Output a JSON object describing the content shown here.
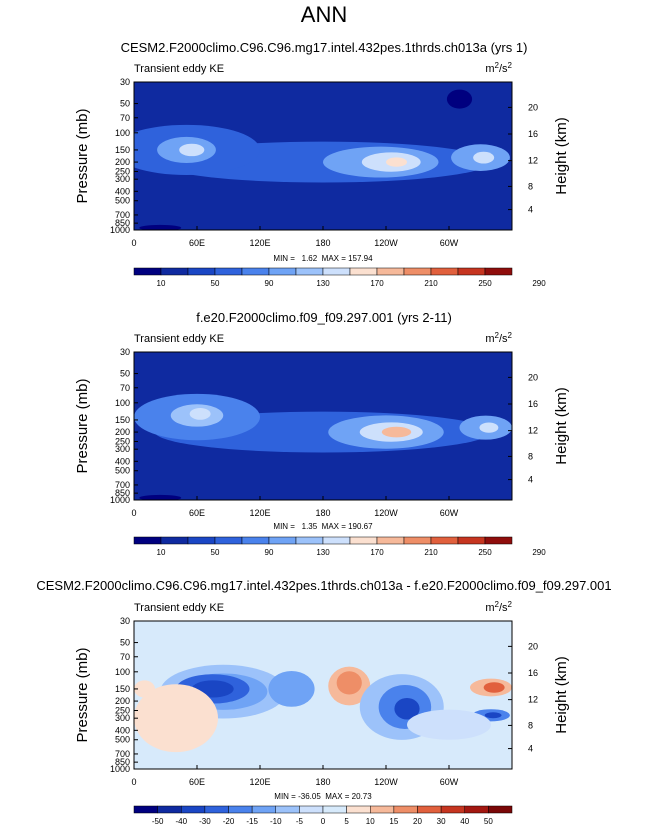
{
  "main_title": "ANN",
  "colors": {
    "panel_scale": [
      "#00007f",
      "#0f2aa0",
      "#1a46c4",
      "#2f62dc",
      "#4a82ec",
      "#6fa3f5",
      "#9cc2fa",
      "#cde0fc",
      "#fbe0d0",
      "#f6b99a",
      "#ee8e67",
      "#e1603d",
      "#c63520",
      "#8f0d0c"
    ],
    "diff_scale": [
      "#00007f",
      "#0f2aa0",
      "#1a46c4",
      "#2f62dc",
      "#4a82ec",
      "#6fa3f5",
      "#9cc2fa",
      "#cde0fc",
      "#d7eafb",
      "#fbe0d0",
      "#f6b99a",
      "#ee8e67",
      "#e1603d",
      "#c63520",
      "#a31710",
      "#7a0707"
    ]
  },
  "chart_data": [
    {
      "type": "heatmap",
      "title": "CESM2.F2000climo.C96.C96.mg17.intel.432pes.1thrds.ch013a (yrs 1)",
      "left_label": "Transient eddy KE",
      "units_base": "m",
      "units_exp1": "2",
      "units_mid": "/s",
      "units_exp2": "2",
      "ylabel": "Pressure (mb)",
      "ylabel_right": "Height (km)",
      "y_ticks": [
        "30",
        "50",
        "70",
        "100",
        "150",
        "200",
        "250",
        "300",
        "400",
        "500",
        "700",
        "850",
        "1000"
      ],
      "y_tick_values": [
        30,
        50,
        70,
        100,
        150,
        200,
        250,
        300,
        400,
        500,
        700,
        850,
        1000
      ],
      "height_ticks": [
        "20",
        "16",
        "12",
        "8",
        "4"
      ],
      "height_tick_values": [
        20,
        16,
        12,
        8,
        4
      ],
      "x_ticks": [
        "0",
        "60E",
        "120E",
        "180",
        "120W",
        "60W"
      ],
      "x_tick_values": [
        0,
        60,
        120,
        180,
        240,
        300
      ],
      "xlim": [
        0,
        360
      ],
      "ylim": [
        1000,
        30
      ],
      "stats": "MIN =   1.62  MAX = 157.94",
      "min": 1.62,
      "max": 157.94,
      "levels": [
        "10",
        "50",
        "90",
        "130",
        "170",
        "210",
        "250",
        "290"
      ],
      "level_values": [
        10,
        30,
        50,
        70,
        90,
        110,
        130,
        150,
        170,
        190,
        210,
        230,
        250,
        270,
        290
      ],
      "background_level": 1,
      "blobs": [
        {
          "lon": 180,
          "p": 200,
          "dlon": 160,
          "dp": 90,
          "level": 3
        },
        {
          "lon": 50,
          "p": 150,
          "dlon": 70,
          "dp": 80,
          "level": 3
        },
        {
          "lon": 235,
          "p": 200,
          "dlon": 55,
          "dp": 70,
          "level": 5
        },
        {
          "lon": 245,
          "p": 200,
          "dlon": 28,
          "dp": 45,
          "level": 7
        },
        {
          "lon": 250,
          "p": 200,
          "dlon": 10,
          "dp": 22,
          "level": 8
        },
        {
          "lon": 50,
          "p": 150,
          "dlon": 28,
          "dp": 45,
          "level": 5
        },
        {
          "lon": 55,
          "p": 150,
          "dlon": 12,
          "dp": 22,
          "level": 7
        },
        {
          "lon": 330,
          "p": 180,
          "dlon": 28,
          "dp": 55,
          "level": 5
        },
        {
          "lon": 333,
          "p": 180,
          "dlon": 10,
          "dp": 25,
          "level": 7
        },
        {
          "lon": 310,
          "p": 45,
          "dlon": 12,
          "dp": 10,
          "level": 0
        },
        {
          "lon": 25,
          "p": 950,
          "dlon": 20,
          "dp": 60,
          "level": 0
        }
      ]
    },
    {
      "type": "heatmap",
      "title": "f.e20.F2000climo.f09_f09.297.001 (yrs 2-11)",
      "left_label": "Transient eddy KE",
      "units_base": "m",
      "units_exp1": "2",
      "units_mid": "/s",
      "units_exp2": "2",
      "ylabel": "Pressure (mb)",
      "ylabel_right": "Height (km)",
      "y_ticks": [
        "30",
        "50",
        "70",
        "100",
        "150",
        "200",
        "250",
        "300",
        "400",
        "500",
        "700",
        "850",
        "1000"
      ],
      "y_tick_values": [
        30,
        50,
        70,
        100,
        150,
        200,
        250,
        300,
        400,
        500,
        700,
        850,
        1000
      ],
      "height_ticks": [
        "20",
        "16",
        "12",
        "8",
        "4"
      ],
      "height_tick_values": [
        20,
        16,
        12,
        8,
        4
      ],
      "x_ticks": [
        "0",
        "60E",
        "120E",
        "180",
        "120W",
        "60W"
      ],
      "x_tick_values": [
        0,
        60,
        120,
        180,
        240,
        300
      ],
      "xlim": [
        0,
        360
      ],
      "ylim": [
        1000,
        30
      ],
      "stats": "MIN =   1.35  MAX = 190.67",
      "min": 1.35,
      "max": 190.67,
      "levels": [
        "10",
        "50",
        "90",
        "130",
        "170",
        "210",
        "250",
        "290"
      ],
      "level_values": [
        10,
        30,
        50,
        70,
        90,
        110,
        130,
        150,
        170,
        190,
        210,
        230,
        250,
        270,
        290
      ],
      "background_level": 1,
      "blobs": [
        {
          "lon": 180,
          "p": 200,
          "dlon": 160,
          "dp": 90,
          "level": 3
        },
        {
          "lon": 60,
          "p": 140,
          "dlon": 60,
          "dp": 70,
          "level": 4
        },
        {
          "lon": 240,
          "p": 200,
          "dlon": 55,
          "dp": 75,
          "level": 5
        },
        {
          "lon": 245,
          "p": 200,
          "dlon": 30,
          "dp": 45,
          "level": 7
        },
        {
          "lon": 250,
          "p": 200,
          "dlon": 14,
          "dp": 25,
          "level": 9
        },
        {
          "lon": 60,
          "p": 135,
          "dlon": 25,
          "dp": 35,
          "level": 6
        },
        {
          "lon": 63,
          "p": 130,
          "dlon": 10,
          "dp": 18,
          "level": 7
        },
        {
          "lon": 335,
          "p": 180,
          "dlon": 25,
          "dp": 50,
          "level": 5
        },
        {
          "lon": 338,
          "p": 180,
          "dlon": 9,
          "dp": 22,
          "level": 7
        },
        {
          "lon": 25,
          "p": 950,
          "dlon": 20,
          "dp": 60,
          "level": 0
        }
      ]
    },
    {
      "type": "heatmap",
      "title": "CESM2.F2000climo.C96.C96.mg17.intel.432pes.1thrds.ch013a - f.e20.F2000climo.f09_f09.297.001",
      "left_label": "Transient eddy KE",
      "units_base": "m",
      "units_exp1": "2",
      "units_mid": "/s",
      "units_exp2": "2",
      "ylabel": "Pressure (mb)",
      "ylabel_right": "Height (km)",
      "y_ticks": [
        "30",
        "50",
        "70",
        "100",
        "150",
        "200",
        "250",
        "300",
        "400",
        "500",
        "700",
        "850",
        "1000"
      ],
      "y_tick_values": [
        30,
        50,
        70,
        100,
        150,
        200,
        250,
        300,
        400,
        500,
        700,
        850,
        1000
      ],
      "height_ticks": [
        "20",
        "16",
        "12",
        "8",
        "4"
      ],
      "height_tick_values": [
        20,
        16,
        12,
        8,
        4
      ],
      "x_ticks": [
        "0",
        "60E",
        "120E",
        "180",
        "120W",
        "60W"
      ],
      "x_tick_values": [
        0,
        60,
        120,
        180,
        240,
        300
      ],
      "xlim": [
        0,
        360
      ],
      "ylim": [
        1000,
        30
      ],
      "stats": "MIN = -36.05  MAX = 20.73",
      "min": -36.05,
      "max": 20.73,
      "levels": [
        "-50",
        "-40",
        "-30",
        "-20",
        "-15",
        "-10",
        "-5",
        "0",
        "5",
        "10",
        "15",
        "20",
        "30",
        "40",
        "50"
      ],
      "level_values": [
        -50,
        -40,
        -30,
        -20,
        -15,
        -10,
        -5,
        0,
        5,
        10,
        15,
        20,
        30,
        40,
        50
      ],
      "background_level": 8,
      "blobs": [
        {
          "lon": 85,
          "p": 160,
          "dlon": 60,
          "dp": 90,
          "level": 6
        },
        {
          "lon": 85,
          "p": 160,
          "dlon": 42,
          "dp": 65,
          "level": 5
        },
        {
          "lon": 75,
          "p": 150,
          "dlon": 35,
          "dp": 50,
          "level": 3
        },
        {
          "lon": 75,
          "p": 150,
          "dlon": 20,
          "dp": 30,
          "level": 2
        },
        {
          "lon": 150,
          "p": 150,
          "dlon": 22,
          "dp": 60,
          "level": 5
        },
        {
          "lon": 205,
          "p": 140,
          "dlon": 20,
          "dp": 60,
          "level": 10
        },
        {
          "lon": 205,
          "p": 130,
          "dlon": 12,
          "dp": 35,
          "level": 11
        },
        {
          "lon": 255,
          "p": 230,
          "dlon": 40,
          "dp": 150,
          "level": 6
        },
        {
          "lon": 258,
          "p": 230,
          "dlon": 25,
          "dp": 110,
          "level": 4
        },
        {
          "lon": 260,
          "p": 240,
          "dlon": 12,
          "dp": 60,
          "level": 2
        },
        {
          "lon": 340,
          "p": 145,
          "dlon": 20,
          "dp": 30,
          "level": 10
        },
        {
          "lon": 343,
          "p": 145,
          "dlon": 10,
          "dp": 18,
          "level": 12
        },
        {
          "lon": 340,
          "p": 280,
          "dlon": 18,
          "dp": 40,
          "level": 4
        },
        {
          "lon": 342,
          "p": 280,
          "dlon": 8,
          "dp": 20,
          "level": 2
        },
        {
          "lon": 300,
          "p": 350,
          "dlon": 40,
          "dp": 120,
          "level": 7
        },
        {
          "lon": 10,
          "p": 150,
          "dlon": 10,
          "dp": 30,
          "level": 9
        },
        {
          "lon": 40,
          "p": 300,
          "dlon": 40,
          "dp": 200,
          "level": 9
        }
      ]
    }
  ]
}
